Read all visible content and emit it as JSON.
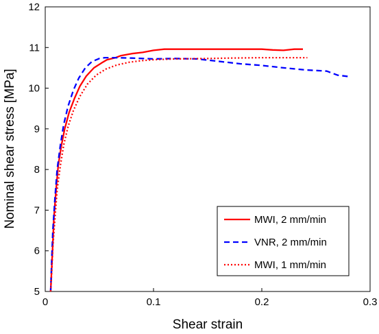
{
  "chart_data": {
    "type": "line",
    "title": "",
    "xlabel": "Shear strain",
    "ylabel": "Nominal shear stress [MPa]",
    "xlim": [
      0,
      0.3
    ],
    "ylim": [
      5,
      12
    ],
    "xticks": [
      0,
      0.1,
      0.2,
      0.3
    ],
    "xtick_labels": [
      "0",
      "0.1",
      "0.2",
      "0.3"
    ],
    "yticks": [
      5,
      6,
      7,
      8,
      9,
      10,
      11,
      12
    ],
    "ytick_labels": [
      "5",
      "6",
      "7",
      "8",
      "9",
      "10",
      "11",
      "12"
    ],
    "grid": false,
    "legend_position": "bottom-right",
    "series": [
      {
        "name": "MWI, 2 mm/min",
        "color": "#ff0000",
        "style": "solid",
        "points": [
          [
            0.005,
            5.0
          ],
          [
            0.006,
            5.6
          ],
          [
            0.007,
            6.2
          ],
          [
            0.008,
            6.8
          ],
          [
            0.01,
            7.5
          ],
          [
            0.012,
            8.1
          ],
          [
            0.015,
            8.6
          ],
          [
            0.018,
            9.0
          ],
          [
            0.022,
            9.4
          ],
          [
            0.027,
            9.75
          ],
          [
            0.032,
            10.05
          ],
          [
            0.038,
            10.3
          ],
          [
            0.045,
            10.5
          ],
          [
            0.052,
            10.62
          ],
          [
            0.057,
            10.7
          ],
          [
            0.065,
            10.75
          ],
          [
            0.07,
            10.8
          ],
          [
            0.08,
            10.85
          ],
          [
            0.09,
            10.88
          ],
          [
            0.1,
            10.93
          ],
          [
            0.11,
            10.96
          ],
          [
            0.15,
            10.96
          ],
          [
            0.2,
            10.96
          ],
          [
            0.21,
            10.94
          ],
          [
            0.22,
            10.93
          ],
          [
            0.23,
            10.96
          ],
          [
            0.238,
            10.96
          ]
        ]
      },
      {
        "name": "VNR, 2 mm/min",
        "color": "#0000ff",
        "style": "dashed",
        "points": [
          [
            0.005,
            5.0
          ],
          [
            0.006,
            5.8
          ],
          [
            0.007,
            6.5
          ],
          [
            0.009,
            7.3
          ],
          [
            0.011,
            8.0
          ],
          [
            0.014,
            8.6
          ],
          [
            0.017,
            9.1
          ],
          [
            0.021,
            9.55
          ],
          [
            0.026,
            9.95
          ],
          [
            0.031,
            10.25
          ],
          [
            0.037,
            10.5
          ],
          [
            0.043,
            10.65
          ],
          [
            0.05,
            10.73
          ],
          [
            0.055,
            10.75
          ],
          [
            0.065,
            10.75
          ],
          [
            0.08,
            10.74
          ],
          [
            0.1,
            10.72
          ],
          [
            0.12,
            10.73
          ],
          [
            0.14,
            10.72
          ],
          [
            0.16,
            10.66
          ],
          [
            0.18,
            10.6
          ],
          [
            0.2,
            10.56
          ],
          [
            0.22,
            10.5
          ],
          [
            0.24,
            10.45
          ],
          [
            0.26,
            10.42
          ],
          [
            0.27,
            10.32
          ],
          [
            0.282,
            10.28
          ]
        ]
      },
      {
        "name": "MWI, 1 mm/min",
        "color": "#ff0000",
        "style": "dotted",
        "points": [
          [
            0.005,
            5.0
          ],
          [
            0.006,
            5.5
          ],
          [
            0.007,
            6.1
          ],
          [
            0.009,
            6.8
          ],
          [
            0.011,
            7.5
          ],
          [
            0.014,
            8.1
          ],
          [
            0.017,
            8.6
          ],
          [
            0.021,
            9.05
          ],
          [
            0.026,
            9.45
          ],
          [
            0.032,
            9.8
          ],
          [
            0.039,
            10.1
          ],
          [
            0.047,
            10.32
          ],
          [
            0.056,
            10.47
          ],
          [
            0.066,
            10.57
          ],
          [
            0.078,
            10.64
          ],
          [
            0.09,
            10.68
          ],
          [
            0.1,
            10.7
          ],
          [
            0.12,
            10.72
          ],
          [
            0.15,
            10.73
          ],
          [
            0.17,
            10.74
          ],
          [
            0.2,
            10.75
          ],
          [
            0.22,
            10.75
          ],
          [
            0.242,
            10.75
          ]
        ]
      }
    ]
  }
}
